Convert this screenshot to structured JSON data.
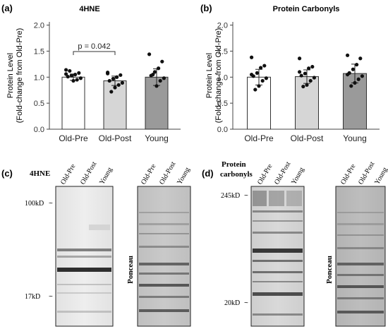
{
  "figure": {
    "colors": {
      "bar_old_pre": "#ffffff",
      "bar_old_post": "#d6d6d6",
      "bar_young": "#9a9a9a",
      "axis": "#444444",
      "point": "#111111"
    }
  },
  "chart_data": [
    {
      "panel": "(a)",
      "type": "bar",
      "title": "4HNE",
      "ylabel": [
        "Protein Level",
        "(Fold-change from Old-Pre)"
      ],
      "categories": [
        "Old-Pre",
        "Old-Post",
        "Young"
      ],
      "values": [
        1.0,
        0.93,
        1.0
      ],
      "error": [
        0.06,
        0.09,
        0.16
      ],
      "points": [
        [
          1.14,
          1.08,
          1.05,
          1.03,
          1.01,
          0.98,
          0.95,
          0.93,
          1.12,
          1.06
        ],
        [
          1.07,
          1.04,
          1.0,
          0.97,
          0.93,
          0.89,
          0.85,
          0.8,
          0.72,
          1.09
        ],
        [
          1.44,
          1.3,
          1.17,
          1.1,
          1.03,
          0.98,
          0.93,
          0.83,
          1.05
        ]
      ],
      "ylim": [
        0,
        2.0
      ],
      "yticks": [
        "0.0",
        "0.5",
        "1.0",
        "1.5",
        "2.0"
      ],
      "annotation": "p = 0.042",
      "annotation_between": [
        "Old-Pre",
        "Old-Post"
      ]
    },
    {
      "panel": "(b)",
      "type": "bar",
      "title": "Protein Carbonyls",
      "ylabel": [
        "Protein Level",
        "(Fold-change from Old-Pre)"
      ],
      "categories": [
        "Old-Pre",
        "Old-Post",
        "Young"
      ],
      "values": [
        1.0,
        1.01,
        1.07
      ],
      "error": [
        0.15,
        0.13,
        0.18
      ],
      "points": [
        [
          1.38,
          1.22,
          1.18,
          1.08,
          1.02,
          0.98,
          0.93,
          0.83,
          0.76,
          1.05
        ],
        [
          1.36,
          1.2,
          1.17,
          1.07,
          1.03,
          0.99,
          0.93,
          0.85,
          0.82,
          1.1
        ],
        [
          1.42,
          1.36,
          1.24,
          1.15,
          1.08,
          1.02,
          0.96,
          0.89,
          0.83,
          1.05
        ]
      ],
      "ylim": [
        0,
        2.0
      ],
      "yticks": [
        "0.0",
        "0.5",
        "1.0",
        "1.5",
        "2.0"
      ]
    }
  ],
  "blots": {
    "c": {
      "panel": "(c)",
      "title": "4HNE",
      "lanes": [
        "Old-Pre",
        "Old-Post",
        "Young"
      ],
      "markers": [
        "100kD",
        "17kD"
      ],
      "stain_label": "Ponceau"
    },
    "d": {
      "panel": "(d)",
      "title_line1": "Protein",
      "title_line2": "carbonyls",
      "lanes": [
        "Old-Pre",
        "Old-Post",
        "Young"
      ],
      "markers": [
        "245kD",
        "20kD"
      ],
      "stain_label": "Ponceau"
    }
  }
}
